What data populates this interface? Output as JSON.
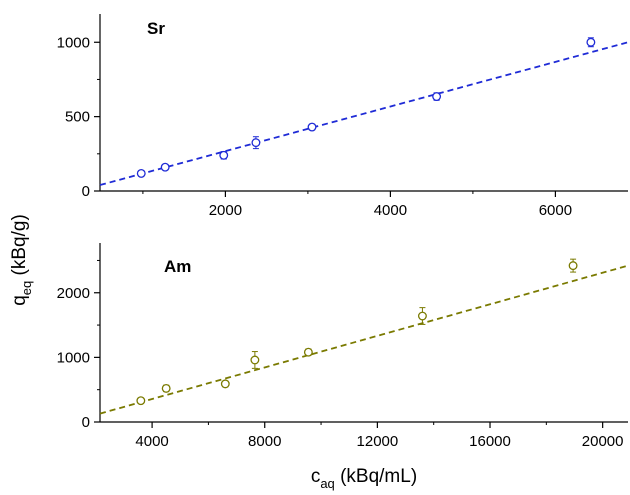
{
  "chart_data": [
    {
      "type": "scatter",
      "panel_label": "Sr",
      "colors": {
        "accent": "#1f2bd6"
      },
      "xlim": [
        480,
        6880
      ],
      "ylim": [
        0,
        1190
      ],
      "x_ticks": [
        2000,
        4000,
        6000
      ],
      "x_tick_labels": [
        "2000",
        "4000",
        "6000"
      ],
      "y_ticks": [
        0,
        500,
        1000
      ],
      "y_tick_labels": [
        "0",
        "500",
        "1000"
      ],
      "series": [
        {
          "style": "open-circle-markers-with-error-bars",
          "x": [
            980,
            1270,
            1980,
            2370,
            3050,
            4560,
            6430
          ],
          "y": [
            118,
            160,
            240,
            325,
            430,
            635,
            1000
          ],
          "yerr": [
            15,
            18,
            25,
            40,
            20,
            25,
            30
          ]
        }
      ],
      "fit_line": {
        "style": "dashed",
        "x": [
          480,
          6880
        ],
        "y": [
          40,
          1000
        ]
      },
      "grid": false
    },
    {
      "type": "scatter",
      "panel_label": "Am",
      "colors": {
        "accent": "#7a7a00"
      },
      "xlim": [
        2150,
        20900
      ],
      "ylim": [
        0,
        2770
      ],
      "x_ticks": [
        4000,
        8000,
        12000,
        16000,
        20000
      ],
      "x_tick_labels": [
        "4000",
        "8000",
        "12000",
        "16000",
        "20000"
      ],
      "y_ticks": [
        0,
        1000,
        2000
      ],
      "y_tick_labels": [
        "0",
        "1000",
        "2000"
      ],
      "series": [
        {
          "style": "open-circle-markers-with-error-bars",
          "x": [
            3600,
            4500,
            6600,
            7650,
            9550,
            13600,
            18950
          ],
          "y": [
            330,
            520,
            590,
            960,
            1080,
            1640,
            2420
          ],
          "yerr": [
            40,
            50,
            45,
            130,
            50,
            130,
            100
          ]
        }
      ],
      "fit_line": {
        "style": "dashed",
        "x": [
          2150,
          20900
        ],
        "y": [
          130,
          2420
        ]
      },
      "grid": false
    }
  ],
  "shared_axes": {
    "ylabel_main": "q",
    "ylabel_sub": "eq",
    "ylabel_unit": " (kBq/g)",
    "xlabel_main": "c",
    "xlabel_sub": "aq",
    "xlabel_unit": " (kBq/mL)"
  }
}
